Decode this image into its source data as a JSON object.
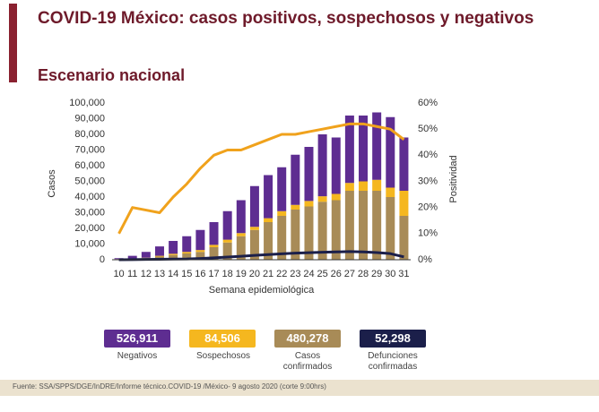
{
  "header": {
    "title": "COVID-19 México: casos positivos, sospechosos y negativos",
    "subtitle": "Escenario nacional"
  },
  "chart_data": {
    "type": "bar",
    "categories": [
      "10",
      "11",
      "12",
      "13",
      "14",
      "15",
      "16",
      "17",
      "18",
      "19",
      "20",
      "21",
      "22",
      "23",
      "24",
      "25",
      "26",
      "27",
      "28",
      "29",
      "30",
      "31"
    ],
    "xlabel": "Semana epidemiológica",
    "ylabel": "Casos",
    "y2label": "Positividad",
    "ylim": [
      0,
      100000
    ],
    "yticks": [
      0,
      {
        "value": 10000,
        "label": "10,000"
      },
      {
        "value": 20000,
        "label": "20,000"
      },
      {
        "value": 30000,
        "label": "30,000"
      },
      {
        "value": 40000,
        "label": "40,000"
      },
      {
        "value": 50000,
        "label": "50,000"
      },
      {
        "value": 60000,
        "label": "60,000"
      },
      {
        "value": 70000,
        "label": "70,000"
      },
      {
        "value": 80000,
        "label": "80,000"
      },
      {
        "value": 90000,
        "label": "90,000"
      },
      {
        "value": 100000,
        "label": "100,000"
      }
    ],
    "y2lim": [
      0,
      60
    ],
    "y2ticks": [
      {
        "value": 0,
        "label": "0%"
      },
      {
        "value": 10,
        "label": "10%"
      },
      {
        "value": 20,
        "label": "20%"
      },
      {
        "value": 30,
        "label": "30%"
      },
      {
        "value": 40,
        "label": "40%"
      },
      {
        "value": 50,
        "label": "50%"
      },
      {
        "value": 60,
        "label": "60%"
      }
    ],
    "series": [
      {
        "color": "#a88b57",
        "values": [
          300,
          500,
          1000,
          2000,
          3000,
          4000,
          5000,
          8000,
          11000,
          15000,
          19000,
          24000,
          28000,
          32000,
          34000,
          37000,
          38000,
          44000,
          44000,
          44000,
          40000,
          28000
        ]
      },
      {
        "color": "#f5b71f",
        "values": [
          100,
          200,
          300,
          500,
          800,
          1000,
          1200,
          1500,
          1800,
          2000,
          2000,
          2500,
          3000,
          3000,
          3500,
          3500,
          4000,
          5000,
          6000,
          7000,
          6000,
          16000
        ]
      },
      {
        "color": "#5e2d91",
        "values": [
          600,
          1800,
          3700,
          6000,
          8200,
          10000,
          12800,
          14500,
          18200,
          21000,
          26000,
          27500,
          28000,
          32000,
          34500,
          39500,
          36000,
          43000,
          42000,
          43000,
          45000,
          34000
        ]
      },
      {
        "type": "line",
        "axis": "y2",
        "color": "#f0a21c",
        "values": [
          10,
          20,
          19,
          18,
          24,
          29,
          35,
          40,
          42,
          42,
          44,
          46,
          48,
          48,
          49,
          50,
          51,
          52,
          52,
          51,
          50,
          46
        ]
      },
      {
        "type": "line",
        "color": "#1b1f4a",
        "values": [
          0,
          100,
          200,
          300,
          400,
          500,
          800,
          1200,
          1700,
          2200,
          2800,
          3300,
          3800,
          4200,
          4500,
          4800,
          5000,
          5200,
          5000,
          4600,
          3900,
          1800
        ]
      }
    ]
  },
  "summary": [
    {
      "label": "526,911",
      "name": "Negativos",
      "color": "#5e2d91"
    },
    {
      "label": "84,506",
      "name": "Sospechosos",
      "color": "#f5b71f"
    },
    {
      "label": "480,278",
      "name": "Casos confirmados",
      "color": "#a88b57"
    },
    {
      "label": "52,298",
      "name": "Defunciones confirmadas",
      "color": "#1b1f4a"
    }
  ],
  "footer": "Fuente: SSA/SPPS/DGE/InDRE/Informe técnico.COVID-19 /México- 9 agosto 2020 (corte 9:00hrs)"
}
